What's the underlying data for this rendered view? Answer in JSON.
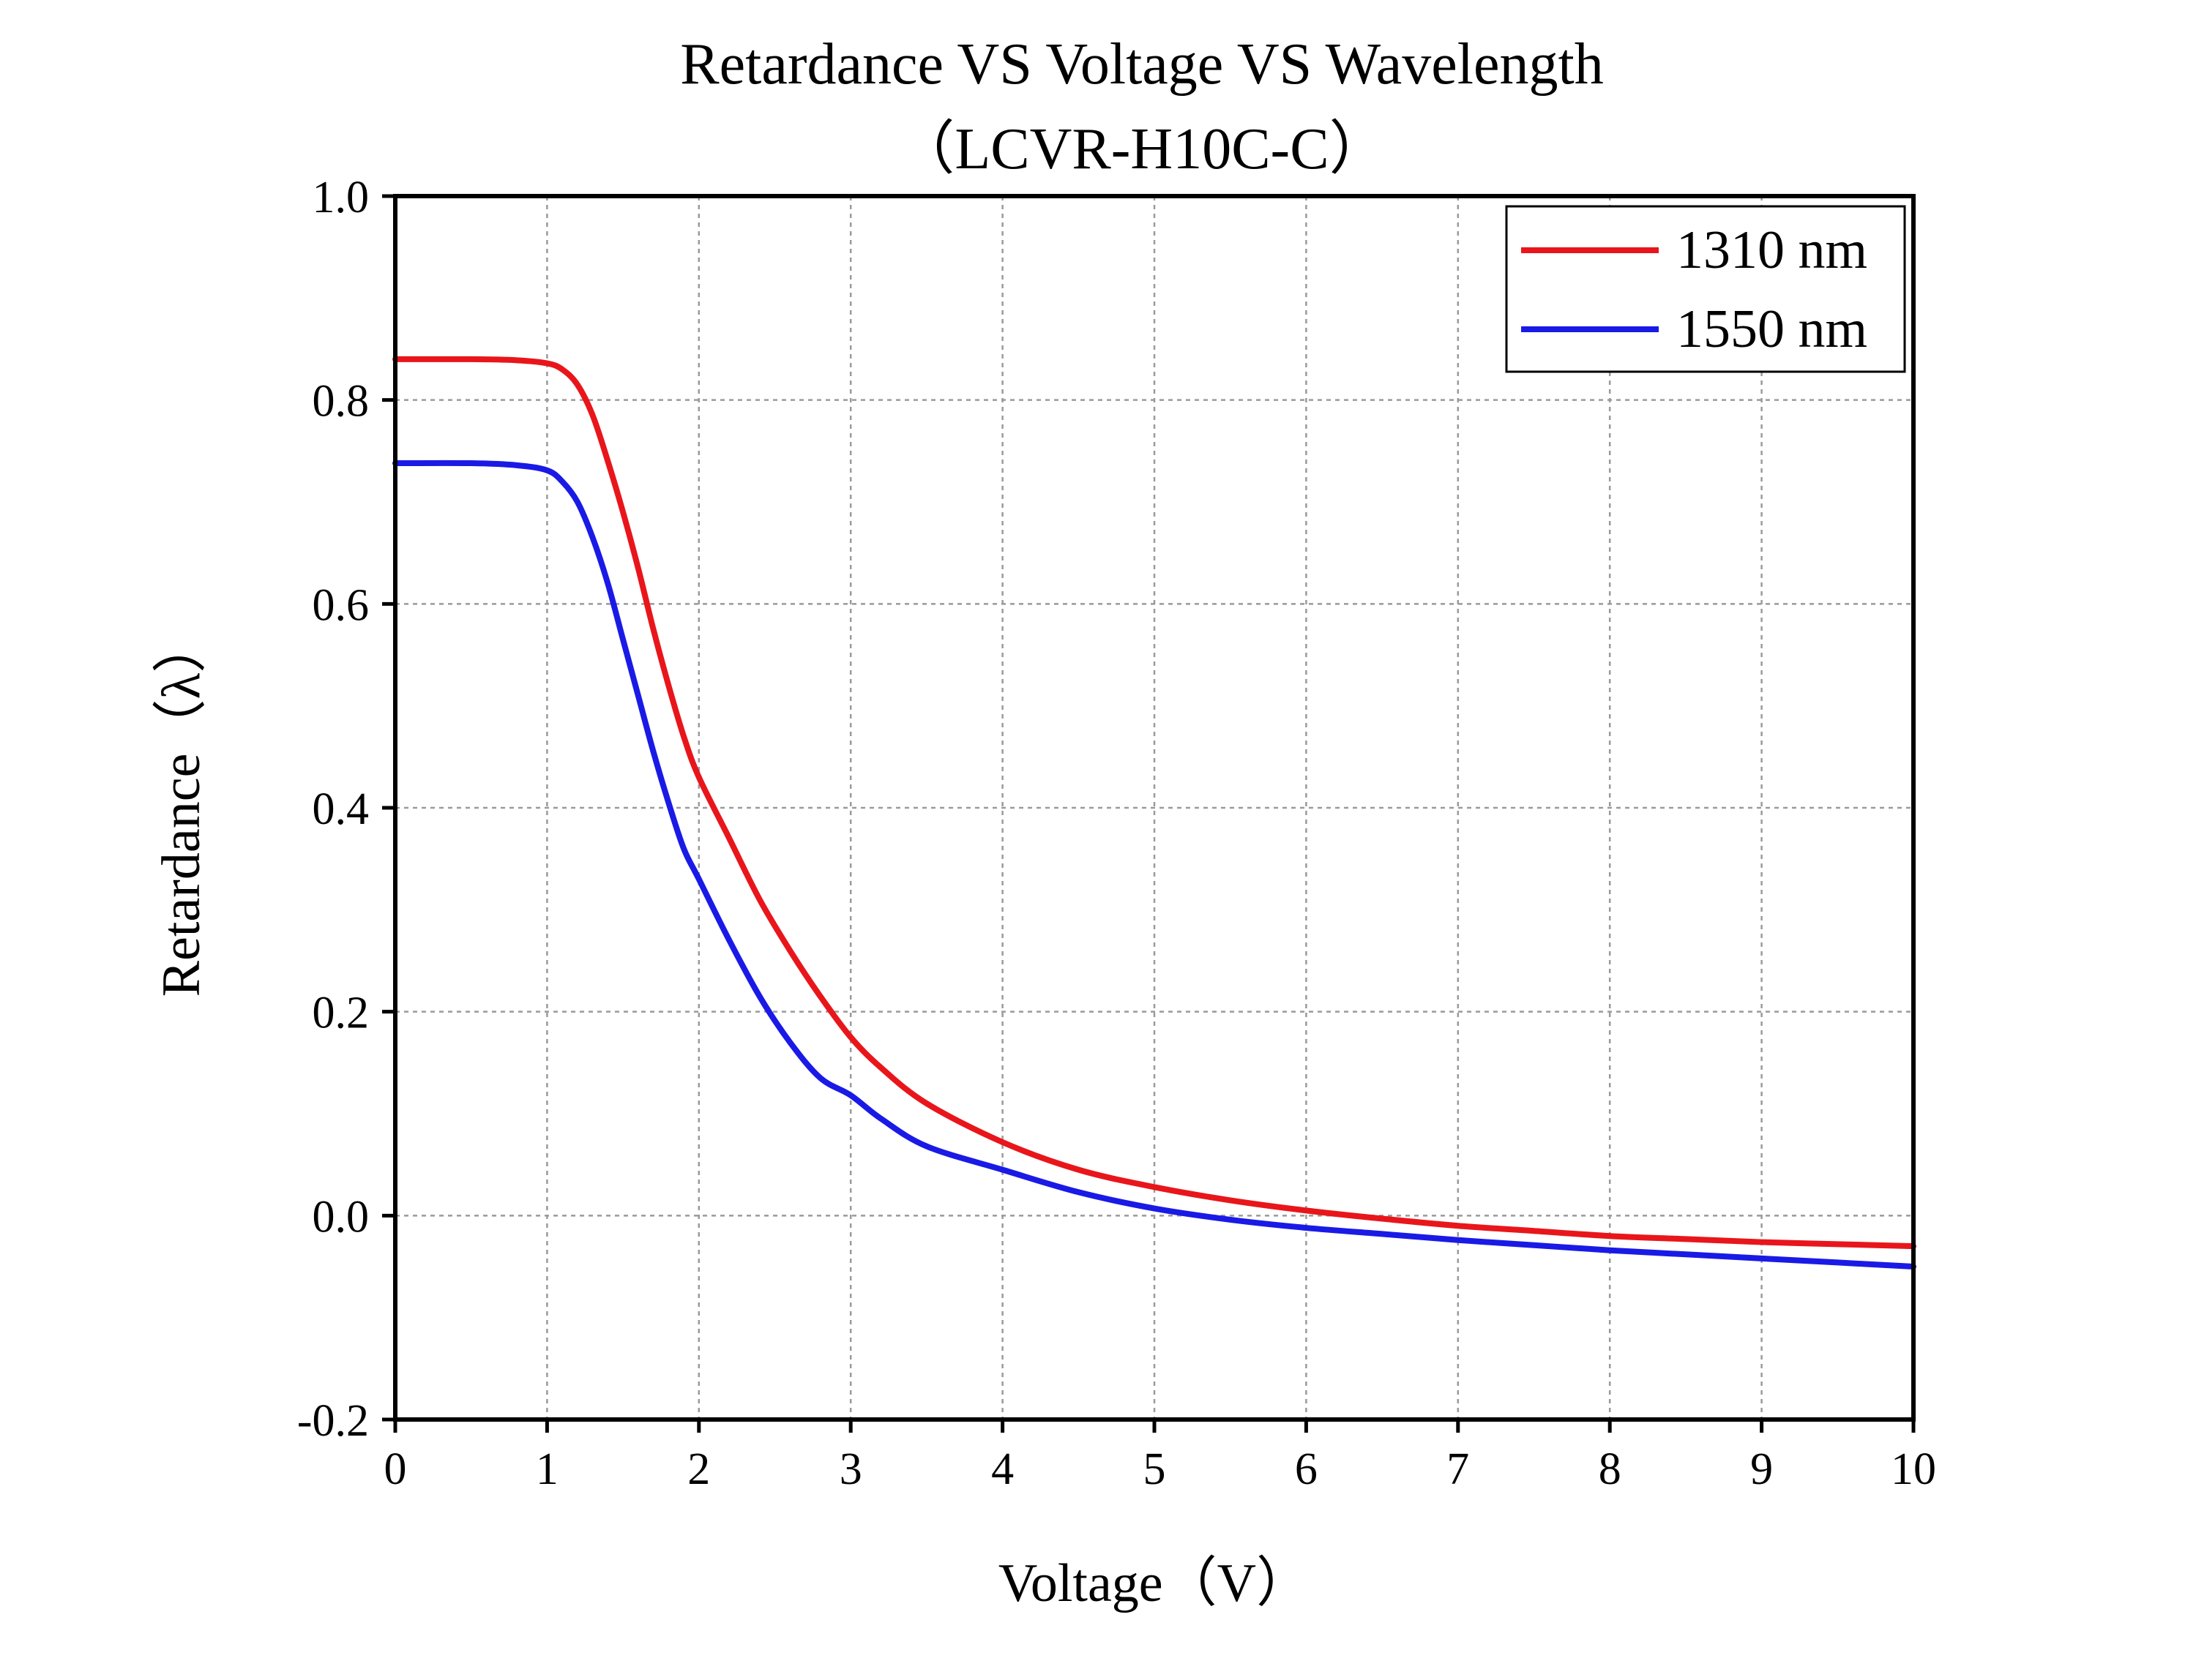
{
  "chart_data": {
    "type": "line",
    "title": "Retardance VS Voltage VS Wavelength",
    "subtitle": "（LCVR-H10C-C）",
    "xlabel": "Voltage（V）",
    "ylabel": "Retardance（λ）",
    "xlim": [
      0,
      10
    ],
    "ylim": [
      -0.2,
      1.0
    ],
    "x_ticks": [
      0,
      1,
      2,
      3,
      4,
      5,
      6,
      7,
      8,
      9,
      10
    ],
    "x_tick_labels": [
      "0",
      "1",
      "2",
      "3",
      "4",
      "5",
      "6",
      "7",
      "8",
      "9",
      "10"
    ],
    "y_ticks": [
      -0.2,
      0.0,
      0.2,
      0.4,
      0.6,
      0.8,
      1.0
    ],
    "y_tick_labels": [
      "-0.2",
      "0.0",
      "0.2",
      "0.4",
      "0.6",
      "0.8",
      "1.0"
    ],
    "grid": true,
    "legend_position": "top-right",
    "series": [
      {
        "name": "1310 nm",
        "color": "#e8161b",
        "x": [
          0,
          0.5,
          0.8,
          1.0,
          1.1,
          1.2,
          1.3,
          1.4,
          1.5,
          1.6,
          1.7,
          1.8,
          1.9,
          2.0,
          2.2,
          2.4,
          2.6,
          2.8,
          3.0,
          3.2,
          3.5,
          4.0,
          4.5,
          5.0,
          5.5,
          6.0,
          6.5,
          7.0,
          7.5,
          8.0,
          8.5,
          9.0,
          9.5,
          10.0
        ],
        "y": [
          0.84,
          0.84,
          0.839,
          0.836,
          0.83,
          0.815,
          0.785,
          0.74,
          0.69,
          0.635,
          0.575,
          0.52,
          0.47,
          0.43,
          0.37,
          0.31,
          0.26,
          0.215,
          0.175,
          0.145,
          0.11,
          0.072,
          0.045,
          0.028,
          0.015,
          0.005,
          -0.003,
          -0.01,
          -0.015,
          -0.02,
          -0.023,
          -0.026,
          -0.028,
          -0.03
        ]
      },
      {
        "name": "1550 nm",
        "color": "#1a1ae6",
        "x": [
          0,
          0.5,
          0.8,
          1.0,
          1.1,
          1.2,
          1.3,
          1.4,
          1.5,
          1.6,
          1.7,
          1.8,
          1.9,
          2.0,
          2.2,
          2.4,
          2.6,
          2.8,
          3.0,
          3.2,
          3.5,
          4.0,
          4.5,
          5.0,
          5.5,
          6.0,
          6.5,
          7.0,
          7.5,
          8.0,
          8.5,
          9.0,
          9.5,
          10.0
        ],
        "y": [
          0.738,
          0.738,
          0.736,
          0.731,
          0.72,
          0.7,
          0.665,
          0.62,
          0.565,
          0.51,
          0.455,
          0.405,
          0.36,
          0.33,
          0.27,
          0.215,
          0.17,
          0.135,
          0.118,
          0.095,
          0.068,
          0.045,
          0.023,
          0.007,
          -0.004,
          -0.012,
          -0.018,
          -0.024,
          -0.029,
          -0.034,
          -0.038,
          -0.042,
          -0.046,
          -0.05
        ]
      }
    ]
  }
}
